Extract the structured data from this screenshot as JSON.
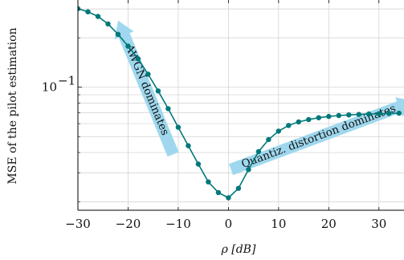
{
  "chart_data": {
    "type": "line",
    "title": "",
    "xlabel": "ρ [dB]",
    "ylabel": "MSE of the pilot estimation",
    "xlim": [
      -30,
      35
    ],
    "ylim": [
      0.0178,
      0.34
    ],
    "yscale": "log",
    "x_ticks": [
      {
        "value": -30,
        "label": "−30"
      },
      {
        "value": -20,
        "label": "−20"
      },
      {
        "value": -10,
        "label": "−10"
      },
      {
        "value": 0,
        "label": "0"
      },
      {
        "value": 10,
        "label": "10"
      },
      {
        "value": 20,
        "label": "20"
      },
      {
        "value": 30,
        "label": "30"
      }
    ],
    "y_ticks": [
      {
        "value": 0.1,
        "label": "10",
        "exponent": "−1"
      }
    ],
    "grid": true,
    "line_color": "#00787a",
    "annotation_color": "#9fd8ee",
    "series": [
      {
        "x": [
          -30,
          -28,
          -26,
          -24,
          -22,
          -20,
          -18,
          -16,
          -14,
          -12,
          -10,
          -8,
          -6,
          -4,
          -2,
          0,
          2,
          4,
          6,
          8,
          10,
          12,
          14,
          16,
          18,
          20,
          22,
          24,
          26,
          28,
          30,
          32,
          34
        ],
        "y": [
          0.301,
          0.288,
          0.27,
          0.243,
          0.21,
          0.178,
          0.149,
          0.12,
          0.095,
          0.074,
          0.057,
          0.044,
          0.034,
          0.0265,
          0.0228,
          0.0212,
          0.0242,
          0.0315,
          0.0405,
          0.048,
          0.054,
          0.0585,
          0.0615,
          0.0635,
          0.0652,
          0.0664,
          0.0672,
          0.0678,
          0.0683,
          0.0687,
          0.069,
          0.0692,
          0.0694
        ]
      }
    ],
    "annotations": [
      {
        "text": "AWGN dominates",
        "x_from": -11,
        "y_from": 0.039,
        "x_to": -22,
        "y_to": 0.255
      },
      {
        "text": "Quantiz. distortion dominates",
        "x_from": 0.5,
        "y_from": 0.0315,
        "x_to": 37,
        "y_to": 0.082
      }
    ]
  }
}
